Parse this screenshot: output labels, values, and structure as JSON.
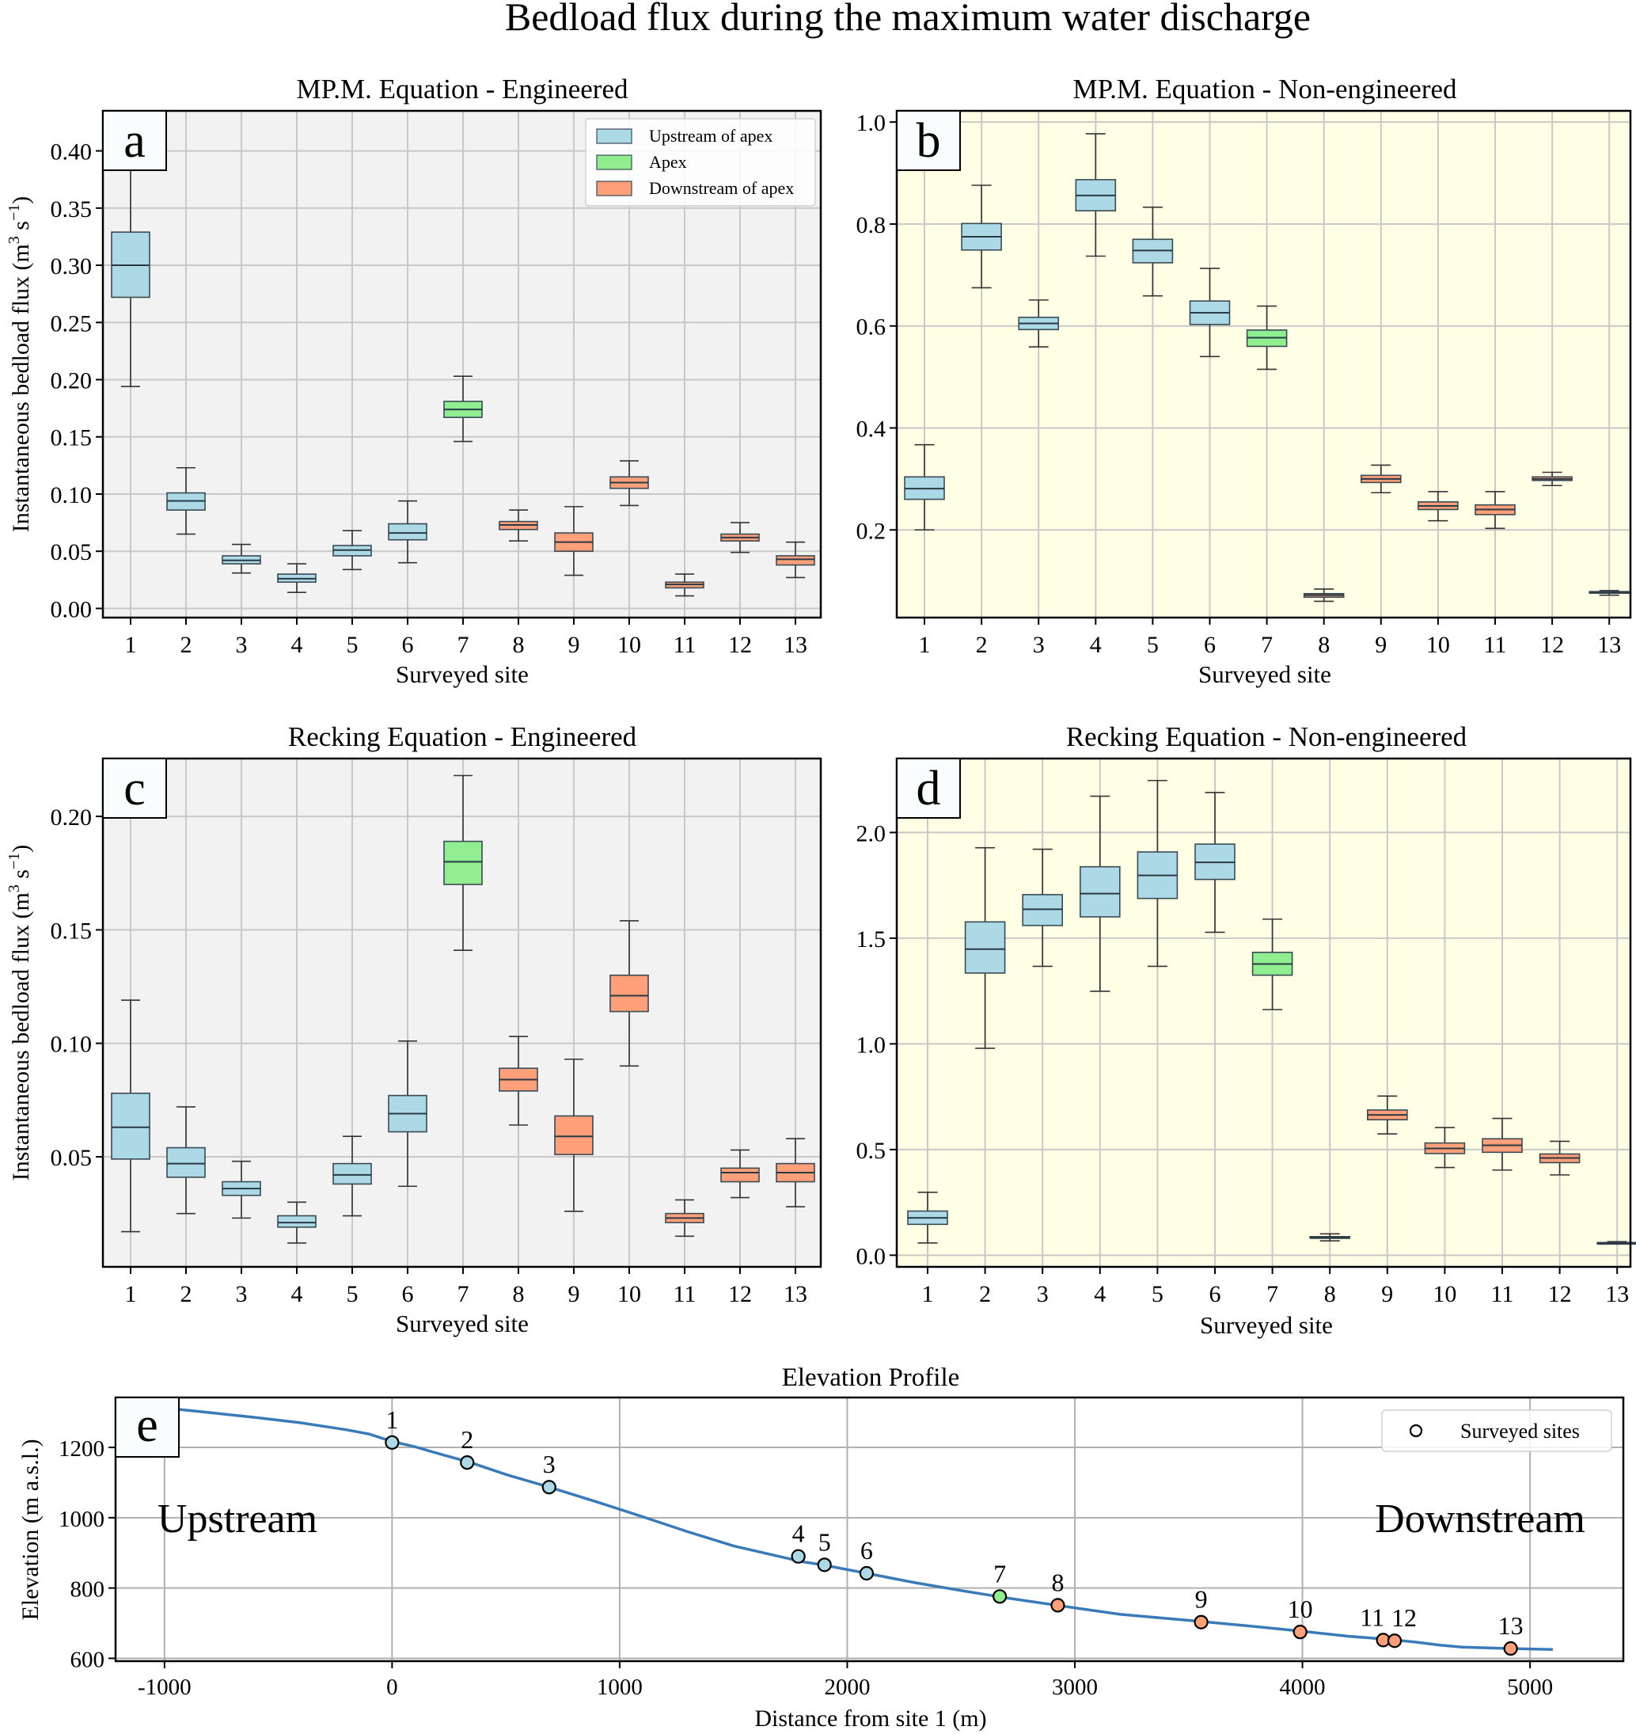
{
  "figure": {
    "suptitle": "Bedload flux during the maximum water discharge",
    "colors": {
      "upstream": "#add8e6",
      "apex": "#90ee90",
      "downstream": "#ffa07a",
      "box_edge": "#3a4a55",
      "whisker": "#333333",
      "bg_engineered": "#f2f2f2",
      "bg_nonengineered": "#ffffe6",
      "grid": "#c8c8c8",
      "profile_line": "#3a7ab8"
    },
    "legend": {
      "items": [
        {
          "label": "Upstream of apex",
          "group": "upstream"
        },
        {
          "label": "Apex",
          "group": "apex"
        },
        {
          "label": "Downstream of apex",
          "group": "downstream"
        }
      ]
    }
  },
  "chart_data": [
    {
      "id": "a",
      "panel_label": "a",
      "type": "box",
      "title": "MP.M. Equation - Engineered",
      "xlabel": "Surveyed site",
      "ylabel": "Instantaneous bedload flux (m³ s⁻¹)",
      "background": "bg_engineered",
      "categories": [
        "1",
        "2",
        "3",
        "4",
        "5",
        "6",
        "7",
        "8",
        "9",
        "10",
        "11",
        "12",
        "13"
      ],
      "groups": [
        "upstream",
        "upstream",
        "upstream",
        "upstream",
        "upstream",
        "upstream",
        "apex",
        "downstream",
        "downstream",
        "downstream",
        "downstream",
        "downstream",
        "downstream"
      ],
      "ylim": [
        -0.008,
        0.435
      ],
      "yticks": [
        0.0,
        0.05,
        0.1,
        0.15,
        0.2,
        0.25,
        0.3,
        0.35,
        0.4
      ],
      "ytick_labels": [
        "0.00",
        "0.05",
        "0.10",
        "0.15",
        "0.20",
        "0.25",
        "0.30",
        "0.35",
        "0.40"
      ],
      "boxes": [
        {
          "min": 0.194,
          "q1": 0.272,
          "median": 0.3,
          "q3": 0.329,
          "max": 0.405
        },
        {
          "min": 0.065,
          "q1": 0.086,
          "median": 0.094,
          "q3": 0.101,
          "max": 0.123
        },
        {
          "min": 0.031,
          "q1": 0.039,
          "median": 0.042,
          "q3": 0.046,
          "max": 0.056
        },
        {
          "min": 0.014,
          "q1": 0.023,
          "median": 0.026,
          "q3": 0.03,
          "max": 0.039
        },
        {
          "min": 0.034,
          "q1": 0.046,
          "median": 0.051,
          "q3": 0.055,
          "max": 0.068
        },
        {
          "min": 0.04,
          "q1": 0.06,
          "median": 0.066,
          "q3": 0.074,
          "max": 0.094
        },
        {
          "min": 0.146,
          "q1": 0.167,
          "median": 0.174,
          "q3": 0.181,
          "max": 0.203
        },
        {
          "min": 0.059,
          "q1": 0.069,
          "median": 0.073,
          "q3": 0.076,
          "max": 0.086
        },
        {
          "min": 0.029,
          "q1": 0.05,
          "median": 0.058,
          "q3": 0.066,
          "max": 0.089
        },
        {
          "min": 0.09,
          "q1": 0.105,
          "median": 0.11,
          "q3": 0.115,
          "max": 0.129
        },
        {
          "min": 0.011,
          "q1": 0.018,
          "median": 0.021,
          "q3": 0.023,
          "max": 0.03
        },
        {
          "min": 0.049,
          "q1": 0.059,
          "median": 0.062,
          "q3": 0.065,
          "max": 0.075
        },
        {
          "min": 0.027,
          "q1": 0.038,
          "median": 0.043,
          "q3": 0.046,
          "max": 0.058
        }
      ],
      "legend": "top-right"
    },
    {
      "id": "b",
      "panel_label": "b",
      "type": "box",
      "title": "MP.M. Equation - Non-engineered",
      "xlabel": "Surveyed site",
      "ylabel": "",
      "background": "bg_nonengineered",
      "categories": [
        "1",
        "2",
        "3",
        "4",
        "5",
        "6",
        "7",
        "8",
        "9",
        "10",
        "11",
        "12",
        "13"
      ],
      "groups": [
        "upstream",
        "upstream",
        "upstream",
        "upstream",
        "upstream",
        "upstream",
        "apex",
        "downstream",
        "downstream",
        "downstream",
        "downstream",
        "downstream",
        "downstream"
      ],
      "ylim": [
        0.028,
        1.022
      ],
      "yticks": [
        0.2,
        0.4,
        0.6,
        0.8,
        1.0
      ],
      "ytick_labels": [
        "0.2",
        "0.4",
        "0.6",
        "0.8",
        "1.0"
      ],
      "boxes": [
        {
          "min": 0.2,
          "q1": 0.26,
          "median": 0.281,
          "q3": 0.304,
          "max": 0.367
        },
        {
          "min": 0.675,
          "q1": 0.749,
          "median": 0.775,
          "q3": 0.801,
          "max": 0.876
        },
        {
          "min": 0.559,
          "q1": 0.593,
          "median": 0.605,
          "q3": 0.617,
          "max": 0.651
        },
        {
          "min": 0.737,
          "q1": 0.826,
          "median": 0.856,
          "q3": 0.887,
          "max": 0.977
        },
        {
          "min": 0.659,
          "q1": 0.724,
          "median": 0.748,
          "q3": 0.77,
          "max": 0.833
        },
        {
          "min": 0.54,
          "q1": 0.603,
          "median": 0.626,
          "q3": 0.649,
          "max": 0.713
        },
        {
          "min": 0.515,
          "q1": 0.56,
          "median": 0.577,
          "q3": 0.592,
          "max": 0.639
        },
        {
          "min": 0.06,
          "q1": 0.068,
          "median": 0.072,
          "q3": 0.075,
          "max": 0.084
        },
        {
          "min": 0.273,
          "q1": 0.293,
          "median": 0.3,
          "q3": 0.307,
          "max": 0.327
        },
        {
          "min": 0.218,
          "q1": 0.24,
          "median": 0.247,
          "q3": 0.255,
          "max": 0.275
        },
        {
          "min": 0.203,
          "q1": 0.23,
          "median": 0.24,
          "q3": 0.249,
          "max": 0.275
        },
        {
          "min": 0.287,
          "q1": 0.297,
          "median": 0.3,
          "q3": 0.304,
          "max": 0.313
        },
        {
          "min": 0.072,
          "q1": 0.076,
          "median": 0.077,
          "q3": 0.079,
          "max": 0.081
        }
      ]
    },
    {
      "id": "c",
      "panel_label": "c",
      "type": "box",
      "title": "Recking Equation - Engineered",
      "xlabel": "Surveyed site",
      "ylabel": "Instantaneous bedload flux (m³ s⁻¹)",
      "background": "bg_engineered",
      "categories": [
        "1",
        "2",
        "3",
        "4",
        "5",
        "6",
        "7",
        "8",
        "9",
        "10",
        "11",
        "12",
        "13"
      ],
      "groups": [
        "upstream",
        "upstream",
        "upstream",
        "upstream",
        "upstream",
        "upstream",
        "apex",
        "downstream",
        "downstream",
        "downstream",
        "downstream",
        "downstream",
        "downstream"
      ],
      "ylim": [
        0.0015,
        0.2255
      ],
      "yticks": [
        0.05,
        0.1,
        0.15,
        0.2
      ],
      "ytick_labels": [
        "0.05",
        "0.10",
        "0.15",
        "0.20"
      ],
      "boxes": [
        {
          "min": 0.017,
          "q1": 0.049,
          "median": 0.063,
          "q3": 0.078,
          "max": 0.119
        },
        {
          "min": 0.025,
          "q1": 0.041,
          "median": 0.047,
          "q3": 0.054,
          "max": 0.072
        },
        {
          "min": 0.023,
          "q1": 0.033,
          "median": 0.036,
          "q3": 0.039,
          "max": 0.048
        },
        {
          "min": 0.012,
          "q1": 0.019,
          "median": 0.021,
          "q3": 0.024,
          "max": 0.03
        },
        {
          "min": 0.024,
          "q1": 0.038,
          "median": 0.042,
          "q3": 0.047,
          "max": 0.059
        },
        {
          "min": 0.037,
          "q1": 0.061,
          "median": 0.069,
          "q3": 0.077,
          "max": 0.101
        },
        {
          "min": 0.141,
          "q1": 0.17,
          "median": 0.18,
          "q3": 0.189,
          "max": 0.218
        },
        {
          "min": 0.064,
          "q1": 0.079,
          "median": 0.084,
          "q3": 0.089,
          "max": 0.103
        },
        {
          "min": 0.026,
          "q1": 0.051,
          "median": 0.059,
          "q3": 0.068,
          "max": 0.093
        },
        {
          "min": 0.09,
          "q1": 0.114,
          "median": 0.121,
          "q3": 0.13,
          "max": 0.154
        },
        {
          "min": 0.015,
          "q1": 0.021,
          "median": 0.023,
          "q3": 0.025,
          "max": 0.031
        },
        {
          "min": 0.032,
          "q1": 0.039,
          "median": 0.043,
          "q3": 0.045,
          "max": 0.053
        },
        {
          "min": 0.028,
          "q1": 0.039,
          "median": 0.043,
          "q3": 0.047,
          "max": 0.058
        }
      ]
    },
    {
      "id": "d",
      "panel_label": "d",
      "type": "box",
      "title": "Recking Equation - Non-engineered",
      "xlabel": "Surveyed site",
      "ylabel": "",
      "background": "bg_nonengineered",
      "categories": [
        "1",
        "2",
        "3",
        "4",
        "5",
        "6",
        "7",
        "8",
        "9",
        "10",
        "11",
        "12",
        "13"
      ],
      "groups": [
        "upstream",
        "upstream",
        "upstream",
        "upstream",
        "upstream",
        "upstream",
        "apex",
        "downstream",
        "downstream",
        "downstream",
        "downstream",
        "downstream",
        "downstream"
      ],
      "ylim": [
        -0.055,
        2.35
      ],
      "yticks": [
        0.0,
        0.5,
        1.0,
        1.5,
        2.0
      ],
      "ytick_labels": [
        "0.0",
        "0.5",
        "1.0",
        "1.5",
        "2.0"
      ],
      "boxes": [
        {
          "min": 0.058,
          "q1": 0.146,
          "median": 0.177,
          "q3": 0.209,
          "max": 0.298
        },
        {
          "min": 0.979,
          "q1": 1.335,
          "median": 1.448,
          "q3": 1.577,
          "max": 1.928
        },
        {
          "min": 1.367,
          "q1": 1.56,
          "median": 1.637,
          "q3": 1.706,
          "max": 1.921
        },
        {
          "min": 1.249,
          "q1": 1.601,
          "median": 1.711,
          "q3": 1.838,
          "max": 2.172
        },
        {
          "min": 1.367,
          "q1": 1.688,
          "median": 1.797,
          "q3": 1.908,
          "max": 2.246
        },
        {
          "min": 1.528,
          "q1": 1.778,
          "median": 1.859,
          "q3": 1.945,
          "max": 2.189
        },
        {
          "min": 1.162,
          "q1": 1.325,
          "median": 1.378,
          "q3": 1.433,
          "max": 1.59
        },
        {
          "min": 0.068,
          "q1": 0.08,
          "median": 0.084,
          "q3": 0.088,
          "max": 0.101
        },
        {
          "min": 0.574,
          "q1": 0.641,
          "median": 0.664,
          "q3": 0.687,
          "max": 0.753
        },
        {
          "min": 0.415,
          "q1": 0.481,
          "median": 0.505,
          "q3": 0.531,
          "max": 0.604
        },
        {
          "min": 0.403,
          "q1": 0.487,
          "median": 0.52,
          "q3": 0.551,
          "max": 0.647
        },
        {
          "min": 0.38,
          "q1": 0.438,
          "median": 0.46,
          "q3": 0.479,
          "max": 0.539
        },
        {
          "min": 0.053,
          "q1": 0.056,
          "median": 0.058,
          "q3": 0.06,
          "max": 0.064
        }
      ]
    },
    {
      "id": "e",
      "panel_label": "e",
      "type": "line",
      "title": "Elevation Profile",
      "xlabel": "Distance from site 1 (m)",
      "ylabel": "Elevation (m a.s.l.)",
      "xlim": [
        -1215,
        5410
      ],
      "ylim": [
        592,
        1342
      ],
      "xticks": [
        -1000,
        0,
        1000,
        2000,
        3000,
        4000,
        5000
      ],
      "xtick_labels": [
        "-1000",
        "0",
        "1000",
        "2000",
        "3000",
        "4000",
        "5000"
      ],
      "yticks": [
        600,
        800,
        1000,
        1200
      ],
      "ytick_labels": [
        "600",
        "800",
        "1000",
        "1200"
      ],
      "annotations": {
        "left": "Upstream",
        "right": "Downstream"
      },
      "legend": {
        "label": "Surveyed sites",
        "placement": "top-right"
      },
      "profile": {
        "x": [
          -935,
          -800,
          -600,
          -400,
          -200,
          -100,
          0,
          100,
          200,
          340,
          500,
          700,
          900,
          1100,
          1300,
          1500,
          1700,
          1800,
          1900,
          2100,
          2300,
          2500,
          2700,
          2930,
          3200,
          3550,
          3800,
          4000,
          4200,
          4380,
          4500,
          4600,
          4700,
          4900,
          5100
        ],
        "y": [
          1308,
          1299,
          1285,
          1270,
          1250,
          1238,
          1217,
          1202,
          1183,
          1158,
          1123,
          1085,
          1045,
          1003,
          960,
          920,
          890,
          875,
          865,
          840,
          815,
          793,
          772,
          750,
          725,
          705,
          690,
          677,
          663,
          654,
          646,
          638,
          632,
          628,
          625
        ]
      },
      "sites": [
        {
          "label": "1",
          "x": 0,
          "y": 1214,
          "group": "upstream"
        },
        {
          "label": "2",
          "x": 330,
          "y": 1157,
          "group": "upstream"
        },
        {
          "label": "3",
          "x": 690,
          "y": 1087,
          "group": "upstream"
        },
        {
          "label": "4",
          "x": 1785,
          "y": 890,
          "group": "upstream"
        },
        {
          "label": "5",
          "x": 1900,
          "y": 866,
          "group": "upstream"
        },
        {
          "label": "6",
          "x": 2085,
          "y": 842,
          "group": "upstream"
        },
        {
          "label": "7",
          "x": 2670,
          "y": 776,
          "group": "apex"
        },
        {
          "label": "8",
          "x": 2925,
          "y": 751,
          "group": "downstream"
        },
        {
          "label": "9",
          "x": 3555,
          "y": 703,
          "group": "downstream"
        },
        {
          "label": "10",
          "x": 3990,
          "y": 675,
          "group": "downstream"
        },
        {
          "label": "11",
          "x": 4355,
          "y": 652,
          "group": "downstream"
        },
        {
          "label": "12",
          "x": 4405,
          "y": 650,
          "group": "downstream"
        },
        {
          "label": "13",
          "x": 4915,
          "y": 628,
          "group": "downstream"
        }
      ]
    }
  ]
}
